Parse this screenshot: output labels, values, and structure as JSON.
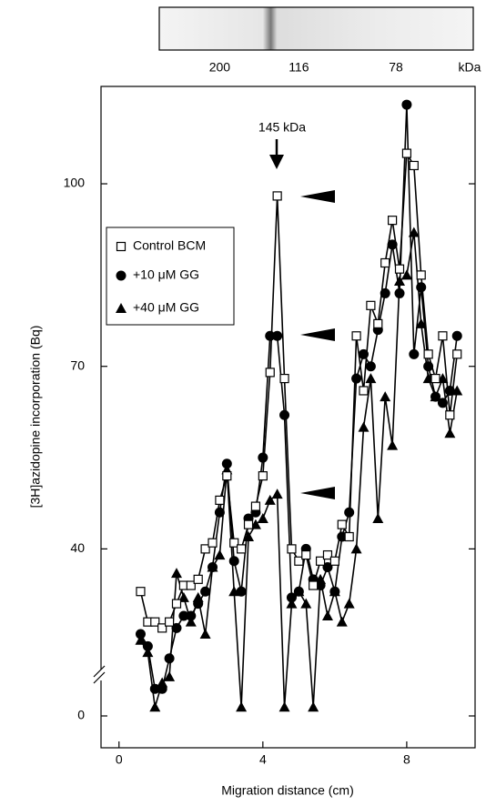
{
  "chart_data": {
    "type": "line",
    "annotation": "145 kDa",
    "xlabel": "Migration distance (cm)",
    "ylabel": "[3H]azidopine incorporation (Bq)",
    "top_ticks": [
      {
        "value": 2.8,
        "label": "200"
      },
      {
        "value": 5.0,
        "label": "116"
      },
      {
        "value": 7.7,
        "label": "78"
      }
    ],
    "top_unit": "kDa",
    "x": [
      0.6,
      0.8,
      1.0,
      1.2,
      1.4,
      1.6,
      1.8,
      2.0,
      2.2,
      2.4,
      2.6,
      2.8,
      3.0,
      3.2,
      3.4,
      3.6,
      3.8,
      4.0,
      4.2,
      4.4,
      4.6,
      4.8,
      5.0,
      5.2,
      5.4,
      5.6,
      5.8,
      6.0,
      6.2,
      6.4,
      6.6,
      6.8,
      7.0,
      7.2,
      7.4,
      7.6,
      7.8,
      8.0,
      8.2,
      8.4,
      8.6,
      8.8,
      9.0,
      9.2,
      9.4
    ],
    "series": [
      {
        "name": "+40 μM GG",
        "marker": "triangle",
        "color": "#000000",
        "values": [
          25,
          23,
          14,
          18,
          19,
          36,
          32,
          28,
          32,
          26,
          37,
          39,
          53,
          33,
          14,
          42,
          44,
          45,
          48,
          49,
          14,
          31,
          33,
          31,
          14,
          35,
          29,
          33,
          28,
          31,
          40,
          60,
          68,
          45,
          65,
          57,
          84,
          85,
          92,
          77,
          68,
          65,
          68,
          59,
          66
        ]
      },
      {
        "name": "+10 μM GG",
        "marker": "circle",
        "color": "#000000",
        "values": [
          26,
          24,
          17,
          17,
          22,
          27,
          29,
          29,
          31,
          33,
          37,
          46,
          54,
          38,
          33,
          45,
          46,
          55,
          75,
          75,
          62,
          32,
          33,
          40,
          35,
          34,
          37,
          33,
          42,
          46,
          68,
          72,
          70,
          76,
          82,
          90,
          82,
          113,
          72,
          83,
          70,
          65,
          64,
          66,
          75
        ]
      },
      {
        "name": "Control BCM",
        "marker": "square",
        "color": "#000000",
        "values": [
          33,
          28,
          28,
          27,
          28,
          31,
          34,
          34,
          35,
          40,
          41,
          48,
          52,
          41,
          40,
          44,
          47,
          52,
          69,
          98,
          68,
          40,
          38,
          39,
          34,
          38,
          39,
          38,
          44,
          42,
          75,
          66,
          80,
          77,
          87,
          94,
          86,
          105,
          103,
          85,
          72,
          68,
          75,
          62,
          72
        ]
      }
    ],
    "xlim": [
      -0.5,
      9.9
    ],
    "xticks": [
      0,
      4,
      8
    ],
    "ylim": [
      0,
      116
    ],
    "y_break": 13,
    "yticks": [
      0,
      40,
      70,
      100
    ]
  }
}
